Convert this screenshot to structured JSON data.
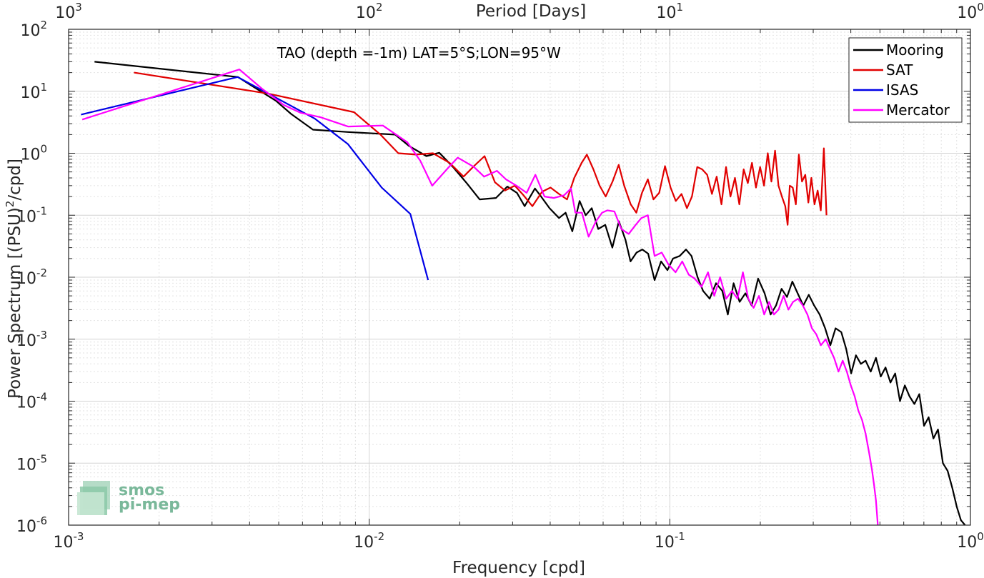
{
  "chart_data": {
    "type": "line",
    "annotation": "TAO (depth =-1m) LAT=5°S;LON=95°W",
    "xlabel": "Frequency [cpd]",
    "ylabel_main": "Power Spectrum [(PSU)",
    "ylabel_sup": "2",
    "ylabel_tail": "/cpd]",
    "x2label": "Period [Days]",
    "xscale": "log",
    "yscale": "log",
    "xlim": [
      0.001,
      1
    ],
    "ylim": [
      1e-06,
      100
    ],
    "grid": true,
    "legend_position": "top-right",
    "x_ticks": [
      {
        "value": 0.001,
        "base": "10",
        "exp": "-3"
      },
      {
        "value": 0.01,
        "base": "10",
        "exp": "-2"
      },
      {
        "value": 0.1,
        "base": "10",
        "exp": "-1"
      },
      {
        "value": 1,
        "base": "10",
        "exp": "0"
      }
    ],
    "y_ticks": [
      {
        "value": 1e-06,
        "base": "10",
        "exp": "-6"
      },
      {
        "value": 1e-05,
        "base": "10",
        "exp": "-5"
      },
      {
        "value": 0.0001,
        "base": "10",
        "exp": "-4"
      },
      {
        "value": 0.001,
        "base": "10",
        "exp": "-3"
      },
      {
        "value": 0.01,
        "base": "10",
        "exp": "-2"
      },
      {
        "value": 0.1,
        "base": "10",
        "exp": "-1"
      },
      {
        "value": 1,
        "base": "10",
        "exp": "0"
      },
      {
        "value": 10,
        "base": "10",
        "exp": "1"
      },
      {
        "value": 100,
        "base": "10",
        "exp": "2"
      }
    ],
    "x2_ticks": [
      {
        "freq": 0.001,
        "base": "10",
        "exp": "3"
      },
      {
        "freq": 0.01,
        "base": "10",
        "exp": "2"
      },
      {
        "freq": 0.1,
        "base": "10",
        "exp": "1"
      },
      {
        "freq": 1,
        "base": "10",
        "exp": "0"
      }
    ],
    "series": [
      {
        "name": "Mooring",
        "color": "#000000",
        "points": [
          [
            0.00122,
            30
          ],
          [
            0.00366,
            17
          ],
          [
            0.0041,
            12
          ],
          [
            0.0049,
            7
          ],
          [
            0.0055,
            4.3
          ],
          [
            0.0065,
            2.4
          ],
          [
            0.0085,
            2.2
          ],
          [
            0.0122,
            2.0
          ],
          [
            0.0136,
            1.3
          ],
          [
            0.0155,
            0.9
          ],
          [
            0.0171,
            1.02
          ],
          [
            0.019,
            0.6
          ],
          [
            0.0211,
            0.33
          ],
          [
            0.0233,
            0.18
          ],
          [
            0.0264,
            0.19
          ],
          [
            0.0288,
            0.29
          ],
          [
            0.031,
            0.23
          ],
          [
            0.0329,
            0.14
          ],
          [
            0.0356,
            0.27
          ],
          [
            0.0373,
            0.2
          ],
          [
            0.0398,
            0.13
          ],
          [
            0.0428,
            0.09
          ],
          [
            0.045,
            0.11
          ],
          [
            0.0474,
            0.055
          ],
          [
            0.0501,
            0.17
          ],
          [
            0.0525,
            0.1
          ],
          [
            0.055,
            0.13
          ],
          [
            0.0578,
            0.06
          ],
          [
            0.061,
            0.07
          ],
          [
            0.0644,
            0.03
          ],
          [
            0.0677,
            0.08
          ],
          [
            0.0712,
            0.04
          ],
          [
            0.074,
            0.018
          ],
          [
            0.0775,
            0.025
          ],
          [
            0.081,
            0.028
          ],
          [
            0.0847,
            0.024
          ],
          [
            0.089,
            0.009
          ],
          [
            0.0935,
            0.018
          ],
          [
            0.0982,
            0.013
          ],
          [
            0.1025,
            0.02
          ],
          [
            0.1078,
            0.022
          ],
          [
            0.1132,
            0.028
          ],
          [
            0.1181,
            0.022
          ],
          [
            0.1237,
            0.01
          ],
          [
            0.129,
            0.006
          ],
          [
            0.1357,
            0.0045
          ],
          [
            0.1425,
            0.008
          ],
          [
            0.1495,
            0.006
          ],
          [
            0.1559,
            0.0025
          ],
          [
            0.163,
            0.008
          ],
          [
            0.1707,
            0.004
          ],
          [
            0.1784,
            0.0055
          ],
          [
            0.1872,
            0.0035
          ],
          [
            0.1967,
            0.0095
          ],
          [
            0.2067,
            0.0055
          ],
          [
            0.2165,
            0.0025
          ],
          [
            0.2256,
            0.0035
          ],
          [
            0.2354,
            0.0065
          ],
          [
            0.2454,
            0.0048
          ],
          [
            0.2556,
            0.0085
          ],
          [
            0.2662,
            0.0055
          ],
          [
            0.278,
            0.0035
          ],
          [
            0.29,
            0.0052
          ],
          [
            0.302,
            0.0035
          ],
          [
            0.315,
            0.0025
          ],
          [
            0.3287,
            0.0015
          ],
          [
            0.342,
            0.0008
          ],
          [
            0.356,
            0.0015
          ],
          [
            0.372,
            0.0013
          ],
          [
            0.386,
            0.0007
          ],
          [
            0.401,
            0.00028
          ],
          [
            0.416,
            0.00055
          ],
          [
            0.432,
            0.0004
          ],
          [
            0.448,
            0.00045
          ],
          [
            0.466,
            0.0003
          ],
          [
            0.485,
            0.0005
          ],
          [
            0.503,
            0.00025
          ],
          [
            0.522,
            0.00035
          ],
          [
            0.542,
            0.0002
          ],
          [
            0.562,
            0.00028
          ],
          [
            0.583,
            0.0001
          ],
          [
            0.605,
            0.00018
          ],
          [
            0.627,
            0.00012
          ],
          [
            0.651,
            9e-05
          ],
          [
            0.676,
            0.00013
          ],
          [
            0.701,
            4e-05
          ],
          [
            0.726,
            5.5e-05
          ],
          [
            0.753,
            2.5e-05
          ],
          [
            0.78,
            3.5e-05
          ],
          [
            0.81,
            1e-05
          ],
          [
            0.84,
            7.5e-06
          ],
          [
            0.87,
            4e-06
          ],
          [
            0.9,
            2e-06
          ],
          [
            0.93,
            1.2e-06
          ],
          [
            0.96,
            1e-06
          ]
        ]
      },
      {
        "name": "SAT",
        "color": "#e10000",
        "points": [
          [
            0.00165,
            20
          ],
          [
            0.0046,
            9.2
          ],
          [
            0.0089,
            4.6
          ],
          [
            0.0109,
            2.0
          ],
          [
            0.0125,
            1.0
          ],
          [
            0.0143,
            0.95
          ],
          [
            0.0163,
            1.0
          ],
          [
            0.0185,
            0.7
          ],
          [
            0.0206,
            0.42
          ],
          [
            0.0223,
            0.62
          ],
          [
            0.0242,
            0.9
          ],
          [
            0.0262,
            0.34
          ],
          [
            0.0283,
            0.25
          ],
          [
            0.0305,
            0.3
          ],
          [
            0.0326,
            0.21
          ],
          [
            0.0349,
            0.14
          ],
          [
            0.0376,
            0.24
          ],
          [
            0.0401,
            0.28
          ],
          [
            0.0428,
            0.22
          ],
          [
            0.0455,
            0.18
          ],
          [
            0.0481,
            0.4
          ],
          [
            0.0509,
            0.7
          ],
          [
            0.053,
            0.95
          ],
          [
            0.0557,
            0.55
          ],
          [
            0.0584,
            0.3
          ],
          [
            0.0612,
            0.2
          ],
          [
            0.0645,
            0.35
          ],
          [
            0.0676,
            0.65
          ],
          [
            0.0705,
            0.3
          ],
          [
            0.0741,
            0.15
          ],
          [
            0.0774,
            0.11
          ],
          [
            0.0808,
            0.23
          ],
          [
            0.0845,
            0.38
          ],
          [
            0.0882,
            0.18
          ],
          [
            0.0922,
            0.23
          ],
          [
            0.0964,
            0.62
          ],
          [
            0.1006,
            0.28
          ],
          [
            0.1047,
            0.17
          ],
          [
            0.1094,
            0.22
          ],
          [
            0.114,
            0.13
          ],
          [
            0.1185,
            0.2
          ],
          [
            0.1234,
            0.6
          ],
          [
            0.1281,
            0.55
          ],
          [
            0.1331,
            0.45
          ],
          [
            0.1381,
            0.22
          ],
          [
            0.1432,
            0.42
          ],
          [
            0.1485,
            0.15
          ],
          [
            0.1538,
            0.6
          ],
          [
            0.1591,
            0.2
          ],
          [
            0.1647,
            0.4
          ],
          [
            0.1703,
            0.15
          ],
          [
            0.1761,
            0.55
          ],
          [
            0.1818,
            0.33
          ],
          [
            0.1876,
            0.7
          ],
          [
            0.1935,
            0.28
          ],
          [
            0.1997,
            0.6
          ],
          [
            0.2058,
            0.3
          ],
          [
            0.2117,
            1.0
          ],
          [
            0.2177,
            0.35
          ],
          [
            0.2239,
            1.1
          ],
          [
            0.2299,
            0.3
          ],
          [
            0.236,
            0.2
          ],
          [
            0.2422,
            0.14
          ],
          [
            0.2465,
            0.07
          ],
          [
            0.2506,
            0.3
          ],
          [
            0.2563,
            0.28
          ],
          [
            0.2626,
            0.15
          ],
          [
            0.2687,
            0.95
          ],
          [
            0.2753,
            0.35
          ],
          [
            0.2822,
            0.45
          ],
          [
            0.2889,
            0.16
          ],
          [
            0.2957,
            0.4
          ],
          [
            0.3029,
            0.15
          ],
          [
            0.3102,
            0.25
          ],
          [
            0.3179,
            0.12
          ],
          [
            0.3254,
            1.2
          ],
          [
            0.332,
            0.1
          ]
        ]
      },
      {
        "name": "ISAS",
        "color": "#0000e6",
        "points": [
          [
            0.0011,
            4.2
          ],
          [
            0.00365,
            17
          ],
          [
            0.0066,
            3.6
          ],
          [
            0.0085,
            1.4
          ],
          [
            0.011,
            0.28
          ],
          [
            0.0137,
            0.105
          ],
          [
            0.0157,
            0.009
          ]
        ]
      },
      {
        "name": "Mercator",
        "color": "#ff00ff",
        "points": [
          [
            0.00111,
            3.5
          ],
          [
            0.0037,
            22.5
          ],
          [
            0.0044,
            11
          ],
          [
            0.0052,
            6
          ],
          [
            0.0059,
            4.5
          ],
          [
            0.0069,
            3.8
          ],
          [
            0.0085,
            2.7
          ],
          [
            0.0111,
            2.8
          ],
          [
            0.0134,
            1.5
          ],
          [
            0.0148,
            0.75
          ],
          [
            0.0162,
            0.3
          ],
          [
            0.0183,
            0.58
          ],
          [
            0.0197,
            0.85
          ],
          [
            0.0223,
            0.6
          ],
          [
            0.0241,
            0.42
          ],
          [
            0.0266,
            0.52
          ],
          [
            0.0285,
            0.38
          ],
          [
            0.0309,
            0.3
          ],
          [
            0.0334,
            0.23
          ],
          [
            0.0357,
            0.45
          ],
          [
            0.0383,
            0.2
          ],
          [
            0.0412,
            0.19
          ],
          [
            0.0445,
            0.21
          ],
          [
            0.0469,
            0.27
          ],
          [
            0.0485,
            0.11
          ],
          [
            0.051,
            0.11
          ],
          [
            0.0537,
            0.045
          ],
          [
            0.0568,
            0.08
          ],
          [
            0.0595,
            0.11
          ],
          [
            0.062,
            0.12
          ],
          [
            0.0654,
            0.115
          ],
          [
            0.069,
            0.06
          ],
          [
            0.073,
            0.05
          ],
          [
            0.077,
            0.07
          ],
          [
            0.0804,
            0.09
          ],
          [
            0.0845,
            0.1
          ],
          [
            0.089,
            0.022
          ],
          [
            0.094,
            0.025
          ],
          [
            0.099,
            0.016
          ],
          [
            0.1045,
            0.012
          ],
          [
            0.11,
            0.018
          ],
          [
            0.1156,
            0.011
          ],
          [
            0.121,
            0.0095
          ],
          [
            0.1275,
            0.007
          ],
          [
            0.134,
            0.012
          ],
          [
            0.1405,
            0.005
          ],
          [
            0.147,
            0.01
          ],
          [
            0.154,
            0.0045
          ],
          [
            0.161,
            0.006
          ],
          [
            0.168,
            0.0045
          ],
          [
            0.175,
            0.012
          ],
          [
            0.1825,
            0.0045
          ],
          [
            0.19,
            0.0032
          ],
          [
            0.198,
            0.005
          ],
          [
            0.206,
            0.0025
          ],
          [
            0.214,
            0.004
          ],
          [
            0.222,
            0.0025
          ],
          [
            0.23,
            0.003
          ],
          [
            0.239,
            0.005
          ],
          [
            0.248,
            0.003
          ],
          [
            0.257,
            0.004
          ],
          [
            0.267,
            0.0045
          ],
          [
            0.277,
            0.0035
          ],
          [
            0.287,
            0.0025
          ],
          [
            0.297,
            0.0015
          ],
          [
            0.307,
            0.0012
          ],
          [
            0.318,
            0.0008
          ],
          [
            0.33,
            0.001
          ],
          [
            0.341,
            0.0007
          ],
          [
            0.352,
            0.0005
          ],
          [
            0.364,
            0.0003
          ],
          [
            0.376,
            0.00045
          ],
          [
            0.388,
            0.0003
          ],
          [
            0.4,
            0.00018
          ],
          [
            0.412,
            0.00012
          ],
          [
            0.424,
            7e-05
          ],
          [
            0.436,
            5e-05
          ],
          [
            0.448,
            3e-05
          ],
          [
            0.46,
            1.5e-05
          ],
          [
            0.47,
            8e-06
          ],
          [
            0.478,
            4.5e-06
          ],
          [
            0.485,
            2.5e-06
          ],
          [
            0.492,
            1e-06
          ]
        ]
      }
    ],
    "logo": {
      "line1": "smos",
      "line2": "pi-mep",
      "color": "#7ab89a"
    }
  }
}
